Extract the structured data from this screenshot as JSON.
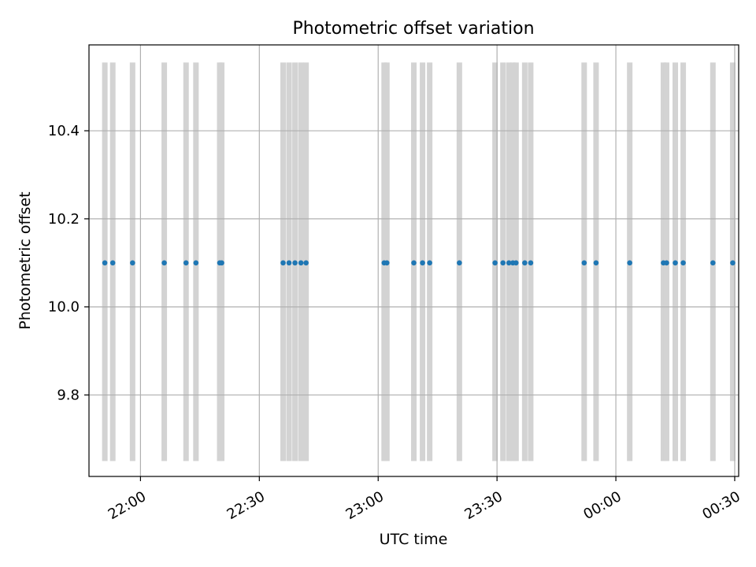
{
  "chart_data": {
    "type": "scatter",
    "title": "Photometric offset variation",
    "xlabel": "UTC time",
    "ylabel": "Photometric offset",
    "xlim": [
      "21:47",
      "00:31"
    ],
    "ylim": [
      9.615,
      10.595
    ],
    "x_ticks": [
      "22:00",
      "22:30",
      "23:00",
      "23:30",
      "00:00",
      "00:30"
    ],
    "y_ticks": [
      9.8,
      10.0,
      10.2,
      10.4
    ],
    "grid": true,
    "background_band_color": "#d3d3d3",
    "series": [
      {
        "color": "#1f77b4",
        "x": [
          "21:51.0",
          "21:53.0",
          "21:58.0",
          "22:06.0",
          "22:11.5",
          "22:14.0",
          "22:20.0",
          "22:20.5",
          "22:36.0",
          "22:37.5",
          "22:39.0",
          "22:40.5",
          "22:41.8",
          "23:01.5",
          "23:02.2",
          "23:09.0",
          "23:11.2",
          "23:13.0",
          "23:20.5",
          "23:29.5",
          "23:31.5",
          "23:33.0",
          "23:34.0",
          "23:34.8",
          "23:37.0",
          "23:38.5",
          "23:52.0",
          "23:55.0",
          "00:03.5",
          "00:12.0",
          "00:12.8",
          "00:15.0",
          "00:17.0",
          "00:24.5",
          "00:29.5"
        ],
        "y": [
          10.1,
          10.1,
          10.1,
          10.1,
          10.1,
          10.1,
          10.1,
          10.1,
          10.1,
          10.1,
          10.1,
          10.1,
          10.1,
          10.1,
          10.1,
          10.1,
          10.1,
          10.1,
          10.1,
          10.1,
          10.1,
          10.1,
          10.1,
          10.1,
          10.1,
          10.1,
          10.1,
          10.1,
          10.1,
          10.1,
          10.1,
          10.1,
          10.1,
          10.1,
          10.1
        ],
        "band_range": [
          9.65,
          10.555
        ]
      }
    ]
  }
}
